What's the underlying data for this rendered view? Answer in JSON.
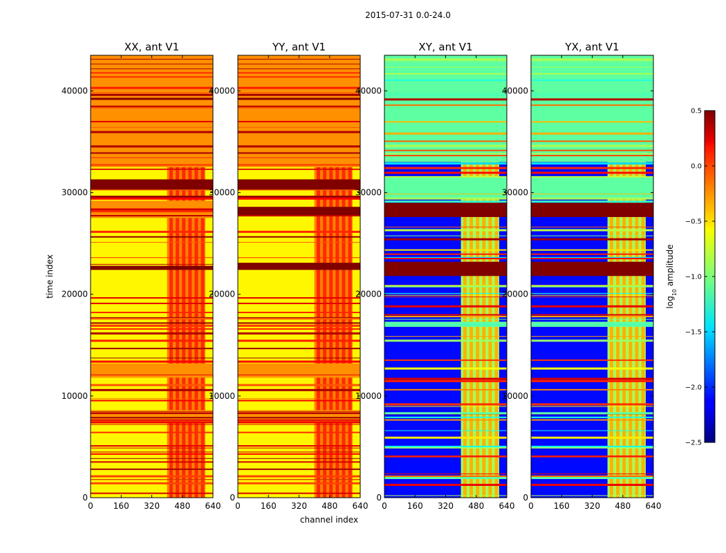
{
  "chart_data": {
    "type": "heatmap",
    "suptitle": "2015-07-31 0.0-24.0",
    "xlabel": "channel index",
    "ylabel": "time index",
    "xlim": [
      0,
      640
    ],
    "ylim": [
      0,
      43500
    ],
    "xticks": [
      0,
      160,
      320,
      480,
      640
    ],
    "yticks": [
      0,
      10000,
      20000,
      30000,
      40000
    ],
    "colormap": "jet",
    "colorbar": {
      "label_prefix": "log",
      "label_sub": "10",
      "label_suffix": " amplitude",
      "vmin": -2.5,
      "vmax": 0.5,
      "ticks": [
        0.5,
        0.0,
        -0.5,
        -1.0,
        -1.5,
        -2.0,
        -2.5
      ],
      "tick_labels": [
        "0.5",
        "0.0",
        "−0.5",
        "−1.0",
        "−1.5",
        "−2.0",
        "−2.5"
      ]
    },
    "panels": [
      {
        "title": "XX, ant V1",
        "kind": "parallel",
        "base_level": -0.6,
        "flagged_channel_band": [
          400,
          600
        ],
        "saturated_time_ranges": [
          [
            30300,
            31300
          ],
          [
            22400,
            22800
          ]
        ],
        "bright_time_ranges": [
          [
            27500,
            29200
          ],
          [
            7400,
            8600
          ],
          [
            11800,
            13200
          ],
          [
            32500,
            43500
          ]
        ]
      },
      {
        "title": "YY, ant V1",
        "kind": "parallel",
        "base_level": -0.6,
        "flagged_channel_band": [
          400,
          600
        ],
        "saturated_time_ranges": [
          [
            30300,
            31300
          ],
          [
            27800,
            28600
          ],
          [
            22400,
            23100
          ]
        ],
        "bright_time_ranges": [
          [
            7400,
            8600
          ],
          [
            11800,
            13200
          ],
          [
            32500,
            43500
          ]
        ]
      },
      {
        "title": "XY, ant V1",
        "kind": "cross",
        "base_level": -2.1,
        "flagged_channel_band": [
          400,
          600
        ],
        "saturated_time_ranges": [
          [
            27600,
            29000
          ],
          [
            21800,
            23200
          ]
        ],
        "bright_time_ranges": [
          [
            29500,
            31500
          ],
          [
            16800,
            17300
          ],
          [
            33000,
            43500
          ]
        ]
      },
      {
        "title": "YX, ant V1",
        "kind": "cross",
        "base_level": -2.1,
        "flagged_channel_band": [
          400,
          600
        ],
        "saturated_time_ranges": [
          [
            27600,
            29000
          ],
          [
            21800,
            23200
          ]
        ],
        "bright_time_ranges": [
          [
            29500,
            31500
          ],
          [
            16800,
            17300
          ],
          [
            33000,
            43500
          ]
        ]
      }
    ]
  }
}
